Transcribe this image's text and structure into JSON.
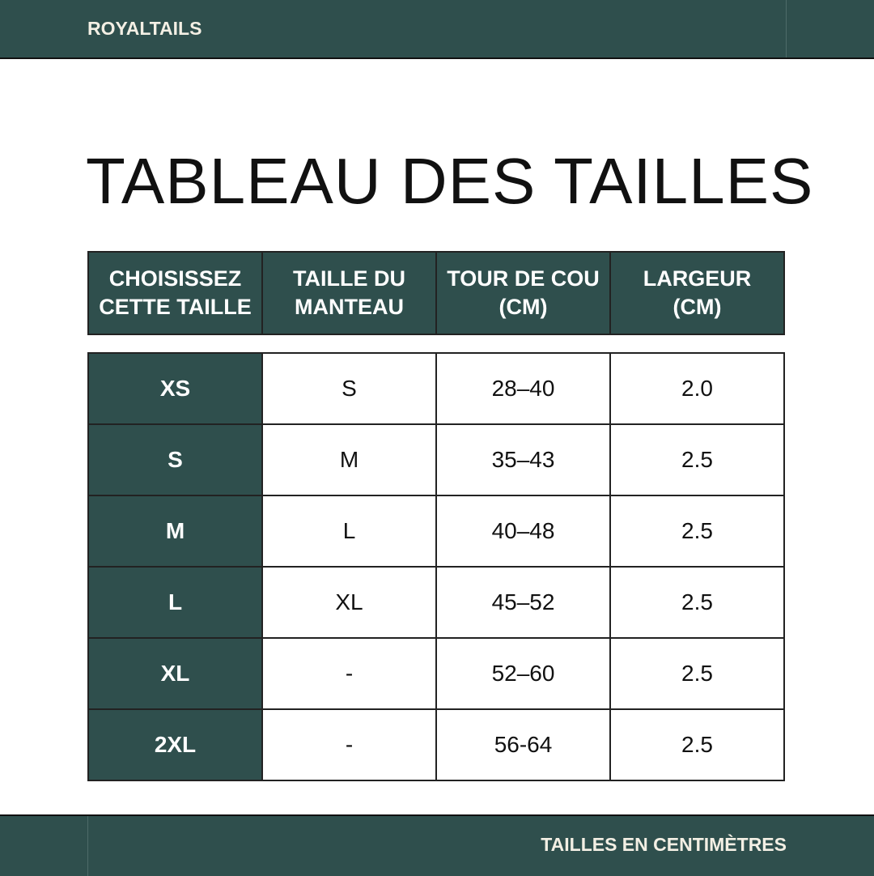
{
  "brand": "ROYALTAILS",
  "title": "TABLEAU DES TAILLES",
  "footer_note": "TAILLES EN CENTIMÈTRES",
  "colors": {
    "primary": "#2f4f4d",
    "header_text": "#f3efe4"
  },
  "table": {
    "headers": [
      [
        "CHOISISSEZ",
        "CETTE TAILLE"
      ],
      [
        "TAILLE DU",
        "MANTEAU"
      ],
      [
        "TOUR DE COU",
        "(CM)"
      ],
      [
        "LARGEUR",
        "(CM)"
      ]
    ],
    "rows": [
      [
        "XS",
        "S",
        "28–40",
        "2.0"
      ],
      [
        "S",
        "M",
        "35–43",
        "2.5"
      ],
      [
        "M",
        "L",
        "40–48",
        "2.5"
      ],
      [
        "L",
        "XL",
        "45–52",
        "2.5"
      ],
      [
        "XL",
        "-",
        "52–60",
        "2.5"
      ],
      [
        "2XL",
        "-",
        "56-64",
        "2.5"
      ]
    ]
  }
}
